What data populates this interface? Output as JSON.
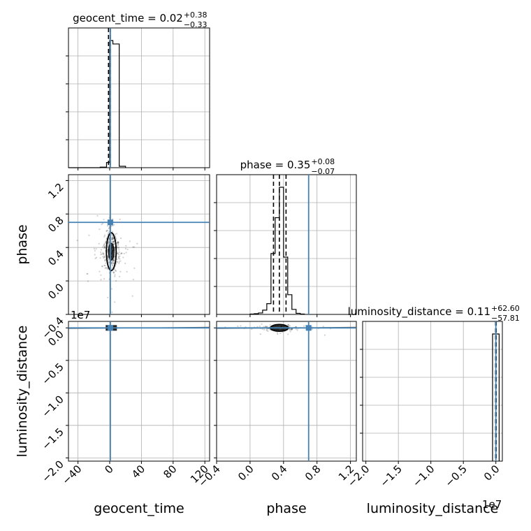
{
  "chart_data": {
    "type": "corner",
    "parameters": [
      "geocent_time",
      "phase",
      "luminosity_distance"
    ],
    "truths": {
      "geocent_time": 0.8,
      "phase": 0.7,
      "luminosity_distance": 200
    },
    "truth_color": "#4682b4",
    "grid": true,
    "titles": {
      "geocent_time": {
        "prefix": "geocent_time = 0.02",
        "plus": "+0.38",
        "minus": "−0.33"
      },
      "phase": {
        "prefix": "phase = 0.35",
        "plus": "+0.08",
        "minus": "−0.07"
      },
      "luminosity_distance": {
        "prefix": "luminosity_distance = 0.11",
        "plus": "+62.60",
        "minus": "−57.81"
      }
    },
    "axis_labels": {
      "geocent_time": "geocent_time",
      "phase": "phase",
      "luminosity_distance": "luminosity_distance"
    },
    "multiplier": "1e7",
    "ranges": {
      "geocent_time": [
        -52,
        126
      ],
      "phase": [
        -0.4,
        1.27
      ],
      "luminosity_distance_1e7": [
        -2.05,
        0.1
      ]
    },
    "ticks": {
      "geocent_time": {
        "values": [
          -40,
          0,
          40,
          80,
          120
        ],
        "labels": [
          "−40",
          "0",
          "40",
          "80",
          "120"
        ]
      },
      "phase": {
        "values": [
          -0.4,
          0.0,
          0.4,
          0.8,
          1.2
        ],
        "labels": [
          "−0.4",
          "0.0",
          "0.4",
          "0.8",
          "1.2"
        ]
      },
      "luminosity_distance": {
        "values": [
          -2.0,
          -1.5,
          -1.0,
          -0.5,
          0.0
        ],
        "labels": [
          "−2.0",
          "−1.5",
          "−1.0",
          "−0.5",
          "0.0"
        ]
      }
    },
    "hist_geocent_time": {
      "edges": [
        -52,
        -44,
        -36,
        -28,
        -20,
        -12,
        -4,
        0,
        4,
        12,
        20
      ],
      "heights": [
        0,
        0,
        0,
        0,
        0,
        3,
        30,
        740,
        720,
        8
      ]
    },
    "hist_phase": {
      "edges": [
        0.0,
        0.05,
        0.1,
        0.15,
        0.2,
        0.25,
        0.3,
        0.35,
        0.4,
        0.45,
        0.5,
        0.55,
        0.6,
        0.65
      ],
      "heights": [
        1,
        2,
        4,
        12,
        30,
        170,
        270,
        355,
        160,
        55,
        14,
        3,
        1
      ]
    },
    "quantiles_phase": [
      0.28,
      0.35,
      0.43
    ],
    "quantiles_luminosity_distance": [
      -0.004,
      0.0,
      0.006
    ]
  }
}
